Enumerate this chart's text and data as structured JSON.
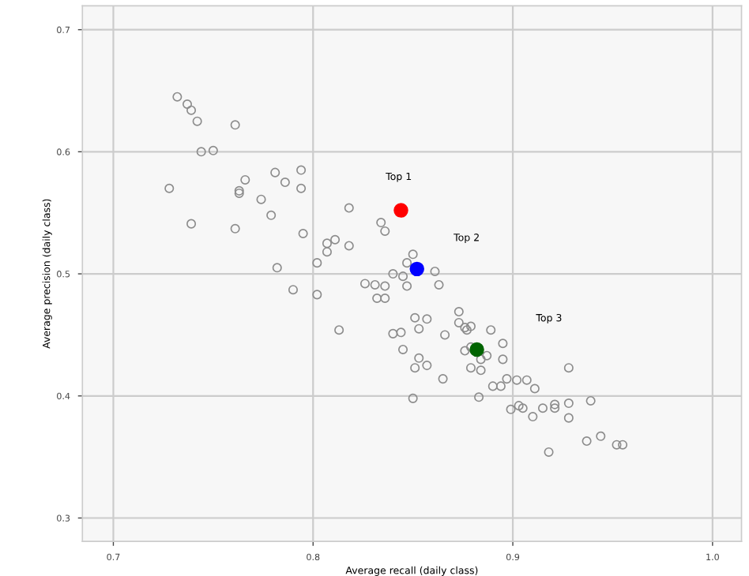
{
  "chart_data": {
    "type": "scatter",
    "xlabel": "Average recall (daily class)",
    "ylabel": "Average precision (daily class)",
    "xlim": [
      0.6845,
      1.0145
    ],
    "ylim": [
      0.2808,
      0.7196
    ],
    "xticks": [
      0.7,
      0.8,
      0.9,
      {
        "value": 1.0,
        "label": "1.0"
      }
    ],
    "yticks": [
      0.3,
      0.4,
      0.5,
      0.6,
      0.7
    ],
    "grid": true,
    "marker": "circle",
    "annotations": [
      "Top 1",
      "Top 2",
      "Top 3"
    ],
    "series": [
      {
        "color": "#8c8c8c",
        "x": [
          0.732,
          0.737,
          0.739,
          0.742,
          0.761,
          0.744,
          0.75,
          0.728,
          0.739,
          0.761,
          0.763,
          0.763,
          0.766,
          0.774,
          0.779,
          0.781,
          0.786,
          0.794,
          0.794,
          0.795,
          0.782,
          0.79,
          0.802,
          0.802,
          0.807,
          0.807,
          0.811,
          0.818,
          0.818,
          0.813,
          0.834,
          0.836,
          0.84,
          0.845,
          0.847,
          0.85,
          0.861,
          0.863,
          0.847,
          0.826,
          0.831,
          0.836,
          0.832,
          0.836,
          0.84,
          0.844,
          0.845,
          0.851,
          0.857,
          0.853,
          0.853,
          0.851,
          0.857,
          0.85,
          0.865,
          0.866,
          0.873,
          0.873,
          0.876,
          0.877,
          0.879,
          0.889,
          0.876,
          0.879,
          0.884,
          0.887,
          0.879,
          0.884,
          0.895,
          0.895,
          0.883,
          0.89,
          0.894,
          0.897,
          0.902,
          0.907,
          0.911,
          0.928,
          0.899,
          0.903,
          0.905,
          0.91,
          0.915,
          0.921,
          0.921,
          0.928,
          0.928,
          0.939,
          0.918,
          0.937,
          0.944,
          0.952,
          0.955
        ],
        "values": [
          0.645,
          0.639,
          0.634,
          0.625,
          0.622,
          0.6,
          0.601,
          0.57,
          0.541,
          0.537,
          0.568,
          0.566,
          0.577,
          0.561,
          0.548,
          0.583,
          0.575,
          0.585,
          0.57,
          0.533,
          0.505,
          0.487,
          0.509,
          0.483,
          0.525,
          0.518,
          0.528,
          0.554,
          0.523,
          0.454,
          0.542,
          0.535,
          0.5,
          0.498,
          0.509,
          0.516,
          0.502,
          0.491,
          0.49,
          0.492,
          0.491,
          0.49,
          0.48,
          0.48,
          0.451,
          0.452,
          0.438,
          0.464,
          0.463,
          0.455,
          0.431,
          0.423,
          0.425,
          0.398,
          0.414,
          0.45,
          0.469,
          0.46,
          0.456,
          0.454,
          0.457,
          0.454,
          0.437,
          0.44,
          0.43,
          0.433,
          0.423,
          0.421,
          0.443,
          0.43,
          0.399,
          0.408,
          0.408,
          0.414,
          0.413,
          0.413,
          0.406,
          0.423,
          0.389,
          0.392,
          0.39,
          0.383,
          0.39,
          0.393,
          0.39,
          0.394,
          0.382,
          0.396,
          0.354,
          0.363,
          0.367,
          0.36,
          0.36
        ]
      },
      {
        "color": "#ff0000",
        "x": [
          0.844
        ],
        "values": [
          0.552
        ]
      },
      {
        "color": "#0000ff",
        "x": [
          0.852
        ],
        "values": [
          0.504
        ]
      },
      {
        "color": "#006400",
        "x": [
          0.882
        ],
        "values": [
          0.438
        ]
      }
    ]
  }
}
